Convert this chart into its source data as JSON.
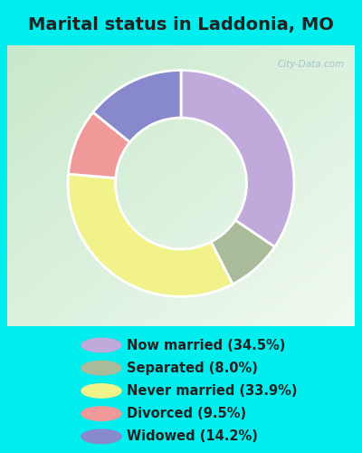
{
  "title": "Marital status in Laddonia, MO",
  "slices": [
    {
      "label": "Now married (34.5%)",
      "value": 34.5,
      "color": "#C0AADC"
    },
    {
      "label": "Separated (8.0%)",
      "value": 8.0,
      "color": "#AABB99"
    },
    {
      "label": "Never married (33.9%)",
      "value": 33.9,
      "color": "#F2F28A"
    },
    {
      "label": "Divorced (9.5%)",
      "value": 9.5,
      "color": "#F09999"
    },
    {
      "label": "Widowed (14.2%)",
      "value": 14.2,
      "color": "#8888CC"
    }
  ],
  "bg_color": "#00EEEE",
  "chart_panel_color": "#D8EED8",
  "title_fontsize": 14,
  "legend_fontsize": 10.5,
  "watermark": "City-Data.com",
  "donut_width": 0.42,
  "start_angle": 90,
  "plot_order": [
    0,
    1,
    2,
    3,
    4
  ]
}
